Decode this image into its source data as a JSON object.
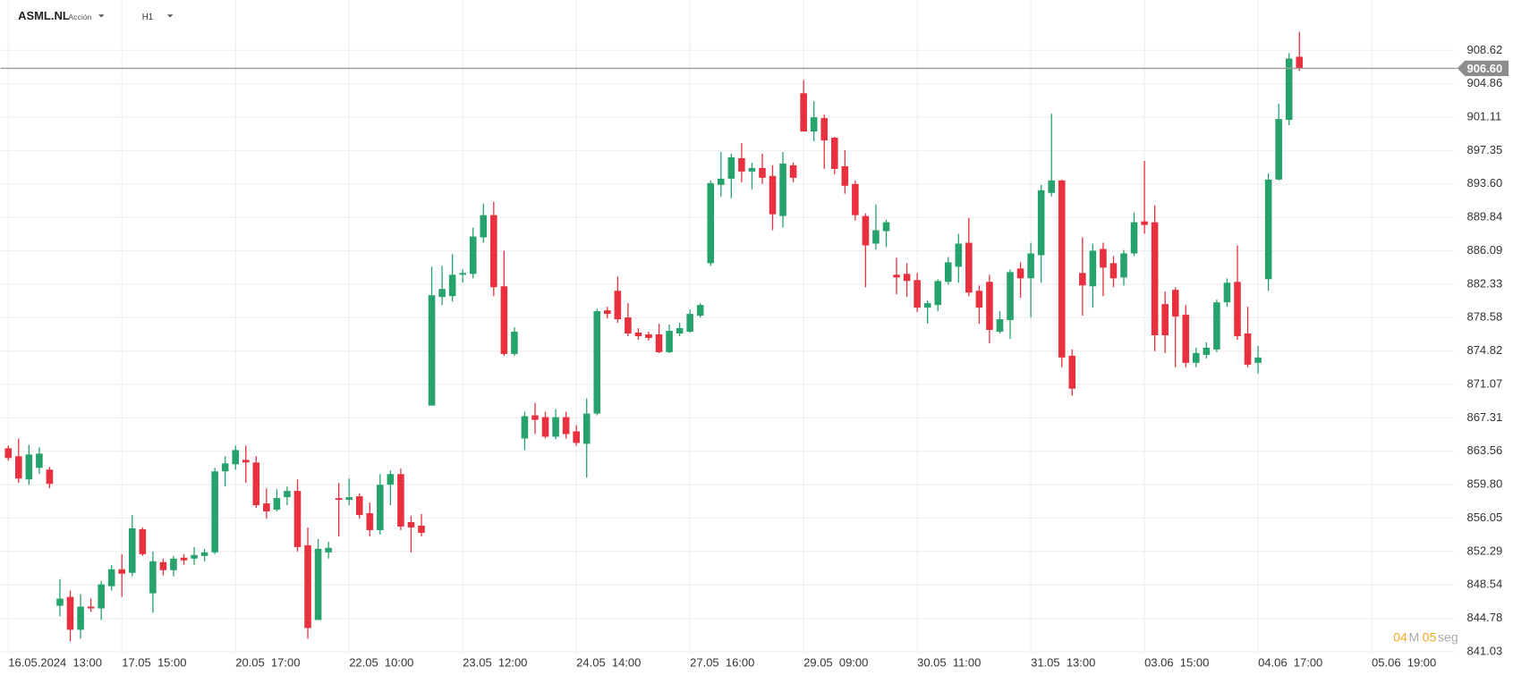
{
  "chart_data": {
    "type": "candlestick",
    "symbol": "ASML.NL",
    "instrument_type": "Acción",
    "timeframe": "H1",
    "countdown": [
      "04",
      "M",
      "05",
      "seg"
    ],
    "up_color": "#26a36c",
    "down_color": "#e8303f",
    "grid": true,
    "last_price": {
      "value": 906.6,
      "label": "906.60"
    },
    "ylim": [
      839.18,
      913.19
    ],
    "yticks": [
      841.03,
      844.78,
      848.54,
      852.29,
      856.05,
      {
        "value": 859.8,
        "label": "859.80"
      },
      863.56,
      867.31,
      871.07,
      874.82,
      878.58,
      882.33,
      886.09,
      889.84,
      {
        "value": 893.6,
        "label": "893.60"
      },
      897.35,
      901.11,
      904.86,
      908.62
    ],
    "xlim": [
      -0.75,
      140
    ],
    "xticks": [
      {
        "value": 0,
        "label": "16.05.2024  13:00"
      },
      {
        "value": 11,
        "label": "17.05  15:00"
      },
      {
        "value": 22,
        "label": "20.05  17:00"
      },
      {
        "value": 33,
        "label": "22.05  10:00"
      },
      {
        "value": 44,
        "label": "23.05  12:00"
      },
      {
        "value": 55,
        "label": "24.05  14:00"
      },
      {
        "value": 66,
        "label": "27.05  16:00"
      },
      {
        "value": 77,
        "label": "29.05  09:00"
      },
      {
        "value": 88,
        "label": "30.05  11:00"
      },
      {
        "value": 99,
        "label": "31.05  13:00"
      },
      {
        "value": 110,
        "label": "03.06  15:00"
      },
      {
        "value": 121,
        "label": "04.06  17:00"
      },
      {
        "value": 132,
        "label": "05.06  19:00"
      }
    ],
    "open": [
      863.9,
      863.0,
      860.4,
      861.7,
      861.5,
      846.2,
      847.2,
      843.5,
      846.1,
      845.9,
      848.4,
      850.3,
      849.9,
      854.8,
      847.6,
      851.1,
      850.2,
      851.6,
      851.5,
      851.8,
      852.2,
      861.3,
      862.1,
      862.6,
      862.3,
      857.7,
      857.0,
      858.4,
      859.1,
      853.0,
      844.6,
      852.2,
      858.3,
      858.1,
      858.5,
      856.6,
      854.7,
      859.8,
      861.0,
      855.6,
      855.2,
      868.7,
      880.9,
      881.0,
      883.4,
      883.5,
      887.6,
      890.1,
      882.1,
      874.5,
      865.0,
      867.6,
      867.4,
      865.2,
      867.4,
      865.8,
      864.4,
      867.8,
      879.4,
      881.6,
      878.6,
      876.9,
      876.7,
      876.7,
      874.7,
      876.8,
      877.0,
      878.8,
      884.7,
      893.5,
      894.2,
      896.5,
      895.0,
      895.4,
      894.5,
      890.0,
      895.7,
      903.8,
      899.5,
      901.0,
      898.8,
      895.6,
      893.6,
      890.0,
      886.9,
      888.3,
      883.4,
      883.5,
      882.8,
      879.7,
      880.0,
      882.6,
      884.3,
      887.0,
      881.6,
      882.6,
      877.0,
      878.3,
      884.1,
      883.0,
      885.6,
      892.6,
      894.0,
      874.3,
      883.6,
      882.1,
      886.3,
      884.7,
      883.1,
      885.8,
      889.4,
      889.3,
      880.1,
      881.7,
      878.9,
      873.5,
      874.4,
      875.0,
      880.3,
      882.6,
      876.8,
      873.5,
      882.9,
      894.1,
      900.8,
      907.9
    ],
    "high": [
      864.2,
      865.0,
      864.3,
      864.0,
      861.8,
      849.2,
      847.9,
      847.5,
      847.0,
      849.0,
      850.8,
      852.0,
      856.4,
      855.0,
      852.3,
      851.5,
      851.8,
      852.0,
      852.8,
      852.6,
      861.7,
      863.0,
      864.2,
      864.2,
      863.0,
      859.4,
      859.3,
      859.6,
      860.4,
      855.0,
      853.7,
      853.4,
      860.0,
      860.5,
      858.8,
      857.8,
      861.0,
      861.4,
      861.6,
      856.3,
      856.5,
      884.3,
      884.4,
      885.7,
      884.0,
      888.7,
      891.4,
      891.6,
      886.1,
      877.5,
      868.0,
      869.0,
      868.0,
      868.3,
      868.0,
      866.5,
      869.5,
      879.6,
      879.8,
      883.2,
      880.2,
      877.4,
      877.0,
      877.9,
      877.8,
      878.0,
      879.5,
      880.2,
      894.0,
      897.2,
      897.0,
      898.2,
      896.0,
      897.0,
      895.7,
      897.2,
      896.0,
      905.3,
      902.9,
      901.4,
      898.9,
      897.4,
      894.0,
      890.3,
      891.3,
      889.6,
      885.3,
      884.7,
      883.6,
      880.5,
      882.9,
      885.4,
      888.0,
      889.8,
      882.2,
      883.4,
      879.3,
      884.0,
      884.8,
      887.0,
      893.5,
      901.5,
      894.1,
      875.0,
      887.6,
      886.9,
      887.0,
      885.5,
      886.2,
      890.4,
      896.2,
      891.2,
      881.5,
      882.0,
      880.0,
      875.2,
      875.8,
      880.6,
      883.0,
      886.7,
      879.8,
      875.4,
      894.8,
      902.6,
      908.3,
      910.7
    ],
    "low": [
      862.5,
      860.0,
      859.8,
      861.0,
      859.4,
      845.0,
      842.2,
      842.5,
      845.5,
      844.6,
      847.9,
      847.2,
      849.5,
      851.8,
      845.4,
      849.6,
      849.5,
      850.8,
      850.8,
      851.2,
      852.0,
      859.6,
      861.5,
      860.0,
      857.2,
      856.0,
      856.8,
      857.5,
      852.3,
      842.5,
      844.6,
      851.5,
      854.0,
      857.5,
      856.0,
      854.0,
      854.2,
      857.5,
      854.7,
      852.2,
      854.0,
      868.7,
      880.0,
      880.4,
      882.5,
      883.0,
      887.0,
      881.0,
      874.3,
      874.3,
      863.7,
      865.5,
      865.0,
      864.9,
      865.0,
      864.2,
      860.6,
      867.6,
      878.5,
      878.0,
      876.5,
      876.1,
      876.0,
      874.6,
      874.6,
      876.5,
      876.9,
      878.6,
      884.4,
      892.2,
      892.0,
      893.8,
      893.0,
      893.6,
      888.4,
      888.7,
      893.8,
      899.5,
      898.4,
      895.3,
      894.7,
      892.5,
      889.5,
      882.0,
      886.2,
      886.5,
      881.2,
      880.9,
      879.2,
      877.9,
      879.3,
      882.3,
      882.5,
      881.0,
      877.9,
      875.7,
      876.8,
      876.2,
      880.8,
      878.6,
      882.5,
      892.2,
      873.0,
      869.8,
      878.8,
      879.7,
      881.0,
      882.0,
      882.2,
      885.5,
      888.0,
      874.8,
      874.6,
      873.0,
      873.0,
      873.0,
      874.0,
      874.7,
      879.8,
      876.1,
      873.0,
      872.3,
      881.6,
      894.0,
      900.2,
      906.3
    ],
    "close": [
      862.8,
      860.5,
      863.2,
      863.3,
      859.9,
      847.0,
      843.5,
      846.1,
      845.9,
      848.6,
      850.3,
      849.8,
      854.9,
      852.0,
      851.2,
      850.2,
      851.5,
      851.3,
      851.9,
      852.2,
      861.3,
      862.2,
      863.7,
      862.3,
      857.5,
      856.8,
      858.3,
      859.1,
      852.8,
      843.7,
      852.6,
      852.7,
      858.1,
      858.4,
      856.4,
      854.7,
      859.8,
      861.0,
      855.1,
      855.0,
      854.4,
      881.1,
      881.8,
      883.4,
      883.6,
      887.7,
      890.1,
      882.0,
      874.5,
      877.0,
      867.5,
      867.1,
      865.2,
      867.4,
      865.5,
      864.5,
      867.8,
      879.3,
      879.0,
      878.4,
      876.8,
      876.5,
      876.3,
      874.7,
      877.1,
      877.4,
      879.0,
      880.0,
      893.7,
      894.2,
      896.6,
      895.0,
      895.4,
      894.3,
      890.2,
      895.9,
      894.3,
      899.5,
      901.1,
      898.5,
      895.3,
      893.4,
      890.1,
      886.7,
      888.4,
      889.3,
      883.1,
      882.7,
      879.7,
      880.2,
      882.7,
      884.8,
      886.9,
      881.4,
      879.7,
      877.2,
      878.4,
      883.7,
      883.0,
      885.8,
      892.9,
      894.0,
      874.1,
      870.6,
      882.2,
      886.1,
      884.2,
      883.0,
      885.8,
      889.3,
      889.0,
      876.6,
      876.6,
      878.7,
      873.5,
      874.6,
      875.2,
      880.3,
      882.5,
      876.5,
      873.3,
      874.1,
      894.1,
      900.9,
      907.7,
      906.6
    ]
  }
}
